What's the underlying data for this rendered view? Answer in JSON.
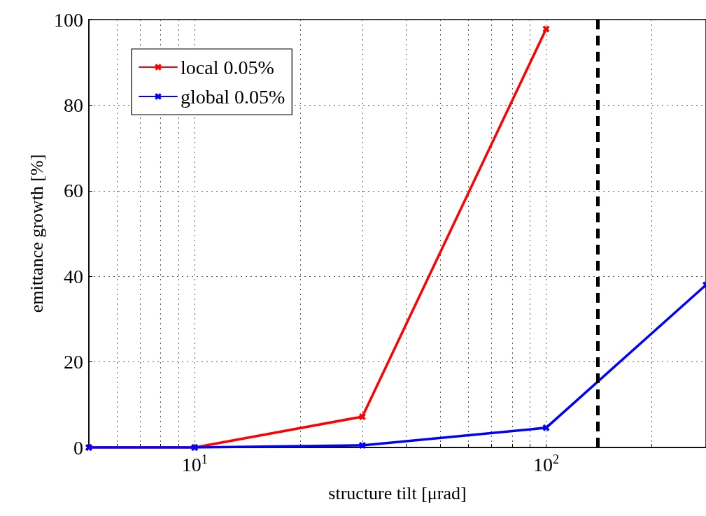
{
  "chart_data": {
    "type": "line",
    "xlabel": "structure tilt [μrad]",
    "ylabel": "emittance growth [%]",
    "x": [
      5,
      10,
      30,
      100,
      285
    ],
    "series": [
      {
        "name": "local 0.05%",
        "color": "#ff0000",
        "values": [
          0,
          0,
          7.2,
          97.8,
          null
        ]
      },
      {
        "name": "global 0.05%",
        "color": "#0000ff",
        "values": [
          0,
          0,
          0.5,
          4.6,
          38
        ]
      }
    ],
    "log": "x",
    "xlim": [
      5,
      285
    ],
    "xticks": [
      {
        "value": 5,
        "label": null
      },
      {
        "value": 6,
        "label": null
      },
      {
        "value": 7,
        "label": null
      },
      {
        "value": 8,
        "label": null
      },
      {
        "value": 9,
        "label": null
      },
      {
        "value": 10,
        "label": "10$^{1}$"
      },
      {
        "value": 20,
        "label": null
      },
      {
        "value": 30,
        "label": null
      },
      {
        "value": 40,
        "label": null
      },
      {
        "value": 50,
        "label": null
      },
      {
        "value": 60,
        "label": null
      },
      {
        "value": 70,
        "label": null
      },
      {
        "value": 80,
        "label": null
      },
      {
        "value": 90,
        "label": null
      },
      {
        "value": 100,
        "label": "10$^{2}$"
      },
      {
        "value": 200,
        "label": null
      }
    ],
    "ylim": [
      0,
      100
    ],
    "yticks": [
      0,
      20,
      40,
      60,
      80,
      100
    ],
    "ref_lines": [
      {
        "axis": "x",
        "value": 140,
        "color": "#000000",
        "line_style": "dashed"
      }
    ],
    "grid": true,
    "legend": "top left",
    "marker": "cross",
    "line_style": "solid"
  }
}
